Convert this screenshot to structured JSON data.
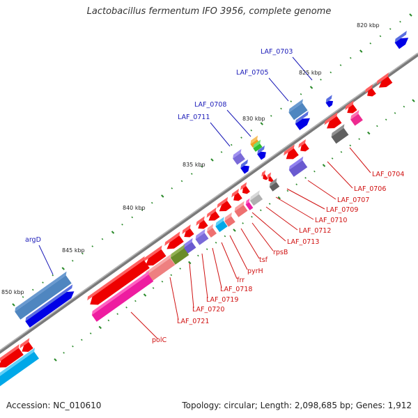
{
  "title": "Lactobacillus fermentum IFO 3956, complete genome",
  "footer": {
    "accession": "Accession: NC_010610",
    "topology": "Topology: circular; Length: 2,098,685 bp; Genes: 1,912"
  },
  "colors": {
    "backbone": "#888888",
    "label_top": "#1a1ab8",
    "label_bottom": "#d01010",
    "tick": "#2a8a2a"
  },
  "scale_labels": [
    "820 kbp",
    "825 kbp",
    "830 kbp",
    "835 kbp",
    "840 kbp",
    "845 kbp",
    "850 kbp"
  ],
  "genes_top": [
    "LAF_0703",
    "LAF_0705",
    "LAF_0708",
    "LAF_0711",
    "argD"
  ],
  "genes_bottom": [
    "LAF_0704",
    "LAF_0706",
    "LAF_0707",
    "LAF_0709",
    "LAF_0710",
    "LAF_0712",
    "LAF_0713",
    "rpsB",
    "tsf",
    "pyrH",
    "frr",
    "LAF_0718",
    "LAF_0719",
    "LAF_0720",
    "LAF_0721",
    "polC"
  ]
}
